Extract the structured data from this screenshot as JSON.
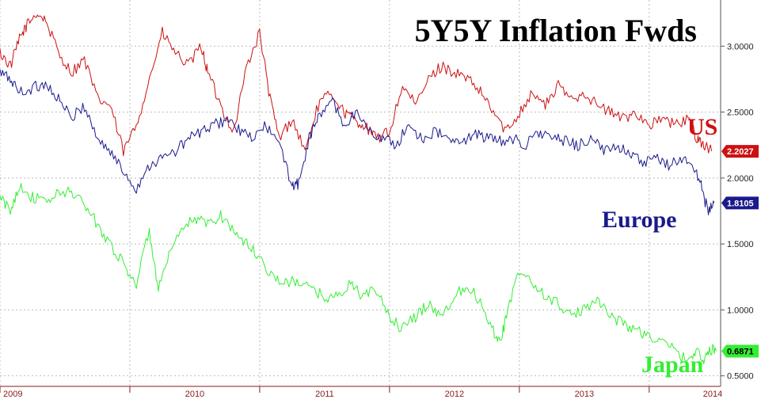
{
  "chart_data": {
    "type": "line",
    "title": "5Y5Y Inflation Fwds",
    "x_ticks": [
      "2009",
      "2010",
      "2011",
      "2012",
      "2013",
      "2014"
    ],
    "xlim": [
      2009.0,
      2014.55
    ],
    "ylim": [
      0.42,
      3.35
    ],
    "y_ticks": [
      "3.0000",
      "2.5000",
      "2.0000",
      "1.5000",
      "1.0000",
      "0.5000"
    ],
    "grid": true,
    "series": [
      {
        "name": "US",
        "color": "#cc1111",
        "last_value_label": "2.2027",
        "x": [
          2009.0,
          2009.08,
          2009.15,
          2009.2,
          2009.28,
          2009.35,
          2009.45,
          2009.55,
          2009.65,
          2009.75,
          2009.85,
          2009.95,
          2010.05,
          2010.15,
          2010.25,
          2010.35,
          2010.45,
          2010.55,
          2010.6,
          2010.7,
          2010.8,
          2010.9,
          2011.0,
          2011.08,
          2011.15,
          2011.25,
          2011.35,
          2011.45,
          2011.55,
          2011.65,
          2011.72,
          2011.8,
          2011.9,
          2012.0,
          2012.1,
          2012.2,
          2012.3,
          2012.4,
          2012.5,
          2012.6,
          2012.7,
          2012.8,
          2012.9,
          2013.0,
          2013.1,
          2013.2,
          2013.3,
          2013.4,
          2013.5,
          2013.6,
          2013.7,
          2013.8,
          2013.9,
          2014.0,
          2014.1,
          2014.2,
          2014.3,
          2014.37,
          2014.42,
          2014.48
        ],
        "y": [
          2.95,
          2.85,
          3.05,
          3.15,
          3.25,
          3.2,
          2.95,
          2.8,
          2.9,
          2.6,
          2.55,
          2.2,
          2.4,
          2.75,
          3.1,
          2.95,
          2.85,
          3.0,
          2.8,
          2.55,
          2.35,
          2.85,
          3.1,
          2.6,
          2.3,
          2.45,
          2.2,
          2.55,
          2.65,
          2.5,
          2.45,
          2.4,
          2.3,
          2.35,
          2.7,
          2.55,
          2.75,
          2.85,
          2.8,
          2.75,
          2.65,
          2.5,
          2.35,
          2.5,
          2.65,
          2.55,
          2.7,
          2.6,
          2.65,
          2.55,
          2.5,
          2.45,
          2.5,
          2.4,
          2.45,
          2.4,
          2.45,
          2.3,
          2.25,
          2.2027
        ]
      },
      {
        "name": "Europe",
        "color": "#1a1a8c",
        "last_value_label": "1.8105",
        "x": [
          2009.0,
          2009.08,
          2009.15,
          2009.25,
          2009.35,
          2009.45,
          2009.55,
          2009.65,
          2009.75,
          2009.85,
          2009.95,
          2010.05,
          2010.15,
          2010.25,
          2010.35,
          2010.45,
          2010.55,
          2010.65,
          2010.75,
          2010.85,
          2010.95,
          2011.05,
          2011.15,
          2011.25,
          2011.3,
          2011.38,
          2011.45,
          2011.55,
          2011.65,
          2011.75,
          2011.85,
          2011.95,
          2012.05,
          2012.15,
          2012.25,
          2012.35,
          2012.45,
          2012.55,
          2012.65,
          2012.75,
          2012.85,
          2012.95,
          2013.05,
          2013.15,
          2013.25,
          2013.35,
          2013.45,
          2013.55,
          2013.65,
          2013.75,
          2013.85,
          2013.95,
          2014.05,
          2014.15,
          2014.25,
          2014.33,
          2014.4,
          2014.45,
          2014.5
        ],
        "y": [
          2.8,
          2.75,
          2.65,
          2.68,
          2.72,
          2.6,
          2.45,
          2.55,
          2.3,
          2.2,
          2.05,
          1.92,
          2.1,
          2.15,
          2.2,
          2.3,
          2.35,
          2.4,
          2.45,
          2.35,
          2.3,
          2.4,
          2.25,
          1.95,
          1.95,
          2.3,
          2.45,
          2.6,
          2.4,
          2.5,
          2.35,
          2.3,
          2.25,
          2.4,
          2.3,
          2.35,
          2.3,
          2.25,
          2.35,
          2.3,
          2.28,
          2.3,
          2.25,
          2.35,
          2.3,
          2.28,
          2.25,
          2.3,
          2.2,
          2.25,
          2.2,
          2.1,
          2.15,
          2.1,
          2.15,
          2.1,
          1.95,
          1.75,
          1.8105
        ]
      },
      {
        "name": "Japan",
        "color": "#33ee33",
        "last_value_label": "0.6871",
        "x": [
          2009.0,
          2009.08,
          2009.15,
          2009.25,
          2009.35,
          2009.45,
          2009.55,
          2009.65,
          2009.75,
          2009.85,
          2009.95,
          2010.05,
          2010.15,
          2010.22,
          2010.3,
          2010.4,
          2010.5,
          2010.6,
          2010.7,
          2010.8,
          2010.9,
          2011.0,
          2011.1,
          2011.2,
          2011.3,
          2011.4,
          2011.5,
          2011.6,
          2011.7,
          2011.8,
          2011.9,
          2012.0,
          2012.1,
          2012.2,
          2012.3,
          2012.4,
          2012.5,
          2012.6,
          2012.7,
          2012.8,
          2012.85,
          2012.9,
          2013.0,
          2013.1,
          2013.2,
          2013.3,
          2013.4,
          2013.5,
          2013.6,
          2013.7,
          2013.8,
          2013.9,
          2014.0,
          2014.1,
          2014.2,
          2014.3,
          2014.37,
          2014.42,
          2014.47,
          2014.52
        ],
        "y": [
          1.85,
          1.75,
          1.95,
          1.85,
          1.82,
          1.88,
          1.9,
          1.8,
          1.65,
          1.5,
          1.35,
          1.2,
          1.6,
          1.15,
          1.4,
          1.6,
          1.7,
          1.65,
          1.72,
          1.6,
          1.5,
          1.4,
          1.25,
          1.2,
          1.22,
          1.15,
          1.1,
          1.1,
          1.2,
          1.1,
          1.15,
          0.95,
          0.85,
          0.95,
          1.05,
          0.95,
          1.1,
          1.2,
          1.05,
          0.85,
          0.75,
          0.95,
          1.3,
          1.2,
          1.1,
          1.05,
          0.95,
          1.0,
          1.1,
          0.95,
          0.9,
          0.85,
          0.8,
          0.75,
          0.7,
          0.6,
          0.72,
          0.6,
          0.7,
          0.6871
        ]
      }
    ]
  }
}
